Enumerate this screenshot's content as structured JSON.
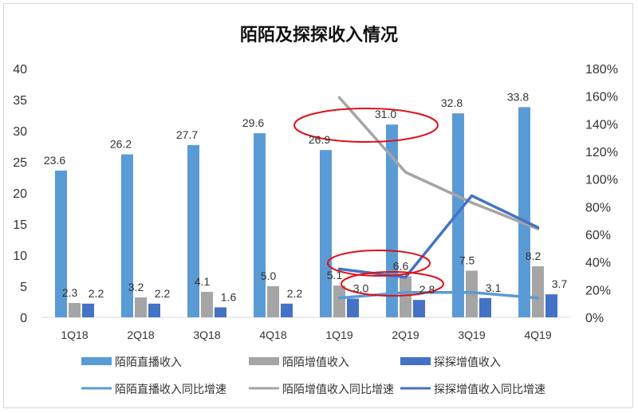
{
  "chart_data": {
    "type": "bar",
    "title": "陌陌及探探收入情况",
    "categories": [
      "1Q18",
      "2Q18",
      "3Q18",
      "4Q18",
      "1Q19",
      "2Q19",
      "3Q19",
      "4Q19"
    ],
    "ylim": [
      0,
      40
    ],
    "y_ticks": [
      "0",
      "5",
      "10",
      "15",
      "20",
      "25",
      "30",
      "35",
      "40"
    ],
    "y2lim": [
      0,
      1.8
    ],
    "y2_ticks": [
      "0%",
      "20%",
      "40%",
      "60%",
      "80%",
      "100%",
      "120%",
      "140%",
      "160%",
      "180%"
    ],
    "bar_series": [
      {
        "name": "陌陌直播收入",
        "color": "#5b9bd5",
        "values": [
          23.6,
          26.2,
          27.7,
          29.6,
          26.9,
          31.0,
          32.8,
          33.8
        ],
        "labels": [
          "23.6",
          "26.2",
          "27.7",
          "29.6",
          "26.9",
          "31.0",
          "32.8",
          "33.8"
        ]
      },
      {
        "name": "陌陌增值收入",
        "color": "#a5a5a5",
        "values": [
          2.3,
          3.2,
          4.1,
          5.0,
          5.1,
          6.6,
          7.5,
          8.2
        ],
        "labels": [
          "2.3",
          "3.2",
          "4.1",
          "5.0",
          "5.1",
          "6.6",
          "7.5",
          "8.2"
        ]
      },
      {
        "name": "探探增值收入",
        "color": "#4472c4",
        "values": [
          2.2,
          2.2,
          1.6,
          2.2,
          3.0,
          2.8,
          3.1,
          3.7
        ],
        "labels": [
          "2.2",
          "2.2",
          "1.6",
          "2.2",
          "3.0",
          "2.8",
          "3.1",
          "3.7"
        ]
      }
    ],
    "line_series": [
      {
        "name": "陌陌直播收入同比增速",
        "color": "#5b9bd5",
        "x": [
          "1Q19",
          "2Q19",
          "3Q19",
          "4Q19"
        ],
        "values": [
          0.14,
          0.18,
          0.18,
          0.14
        ]
      },
      {
        "name": "陌陌增值收入同比增速",
        "color": "#a5a5a5",
        "x": [
          "1Q19",
          "2Q19",
          "3Q19",
          "4Q19"
        ],
        "values": [
          1.59,
          1.05,
          0.83,
          0.64
        ]
      },
      {
        "name": "探探增值收入同比增速",
        "color": "#4472c4",
        "x": [
          "1Q19",
          "2Q19",
          "3Q19",
          "4Q19"
        ],
        "values": [
          0.35,
          0.29,
          0.88,
          0.65
        ]
      }
    ],
    "legend": {
      "placement": "bottom"
    },
    "annotations": [
      "red ellipse around 1Q19-2Q19 live revenue labels",
      "red ellipse around 1Q19-2Q19 value-added labels",
      "red ellipse around 1Q19-2Q19 Tantan labels"
    ],
    "accent_color": "#e0101a"
  }
}
